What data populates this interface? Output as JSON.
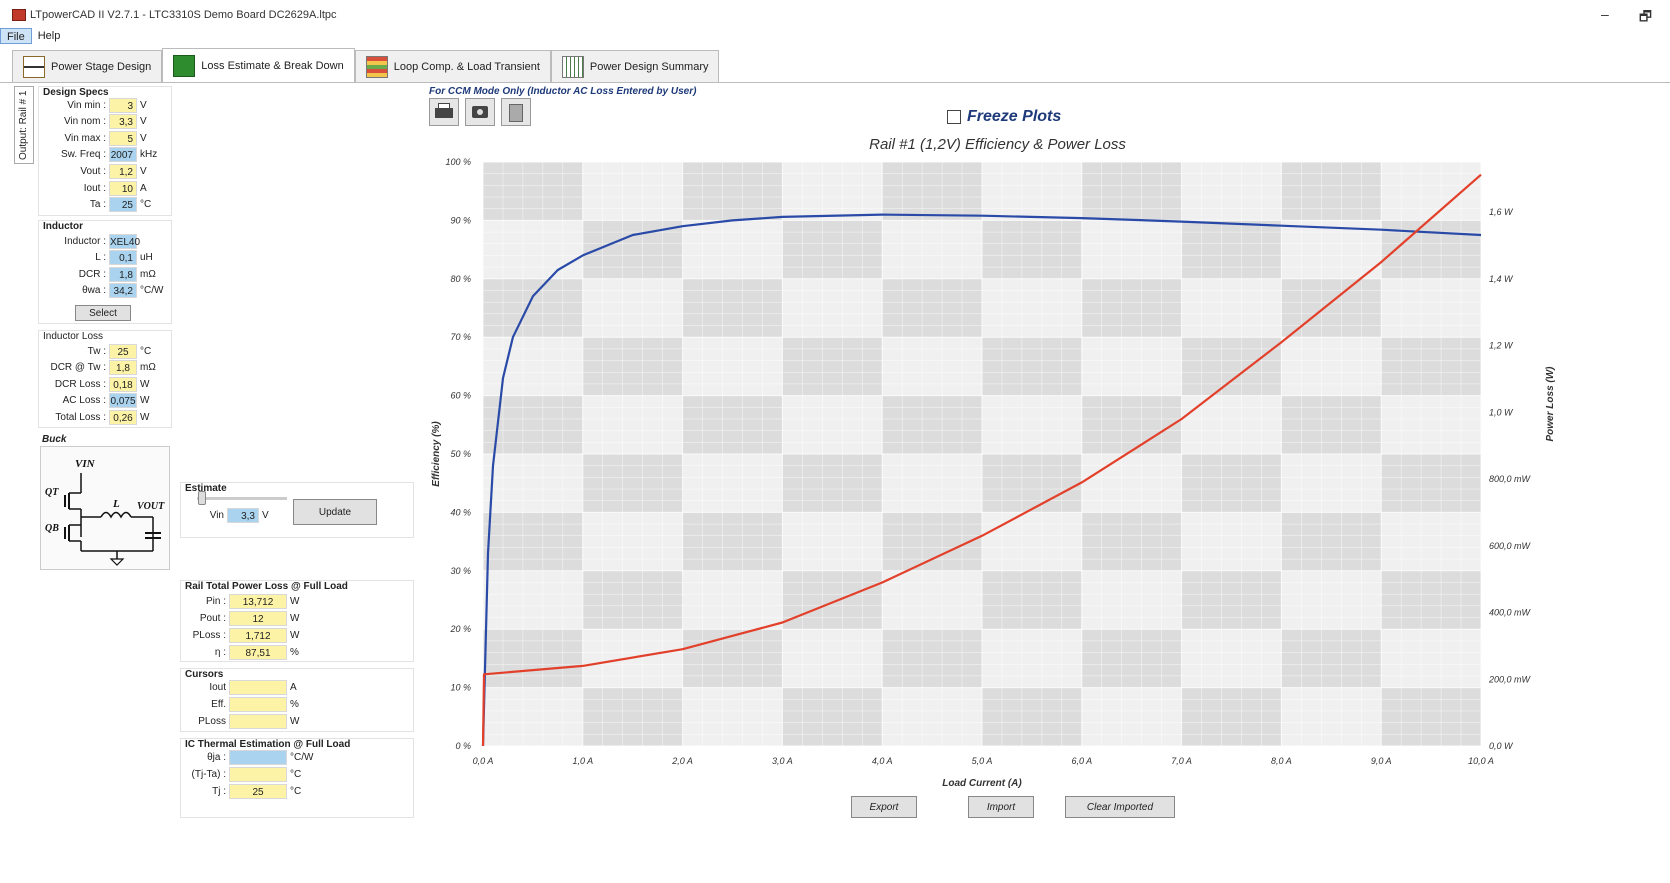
{
  "window": {
    "title": "LTpowerCAD II V2.7.1 - LTC3310S Demo Board DC2629A.ltpc",
    "minimize": "–",
    "restore": "🗗"
  },
  "menu": [
    "File",
    "Help"
  ],
  "tabs": [
    {
      "label": "Power Stage Design",
      "icon": "power-stage-icon"
    },
    {
      "label": "Loss Estimate & Break Down",
      "icon": "loss-estimate-icon"
    },
    {
      "label": "Loop Comp. & Load Transient",
      "icon": "loop-comp-icon"
    },
    {
      "label": "Power Design Summary",
      "icon": "summary-icon"
    }
  ],
  "side_tab": "Output: Rail # 1",
  "design_specs": {
    "title": "Design Specs",
    "rows": [
      {
        "label": "Vin min :",
        "value": "3",
        "unit": "V",
        "color": "yellow"
      },
      {
        "label": "Vin nom :",
        "value": "3,3",
        "unit": "V",
        "color": "yellow"
      },
      {
        "label": "Vin max :",
        "value": "5",
        "unit": "V",
        "color": "yellow"
      },
      {
        "label": "Sw. Freq :",
        "value": "2007",
        "unit": "kHz",
        "color": "blue"
      },
      {
        "label": "Vout :",
        "value": "1,2",
        "unit": "V",
        "color": "yellow"
      },
      {
        "label": "Iout :",
        "value": "10",
        "unit": "A",
        "color": "yellow"
      },
      {
        "label": "Ta :",
        "value": "25",
        "unit": "°C",
        "color": "blue"
      }
    ]
  },
  "inductor": {
    "title": "Inductor",
    "rows": [
      {
        "label": "Inductor :",
        "value": "XEL40",
        "unit": "",
        "color": "blue"
      },
      {
        "label": "L :",
        "value": "0,1",
        "unit": "uH",
        "color": "blue"
      },
      {
        "label": "DCR :",
        "value": "1,8",
        "unit": "mΩ",
        "color": "blue"
      },
      {
        "label": "θwa :",
        "value": "34,2",
        "unit": "°C/W",
        "color": "blue"
      }
    ],
    "select_label": "Select"
  },
  "inductor_loss": {
    "title": "Inductor Loss",
    "rows": [
      {
        "label": "Tw :",
        "value": "25",
        "unit": "°C",
        "color": "yellow"
      },
      {
        "label": "DCR @ Tw :",
        "value": "1,8",
        "unit": "mΩ",
        "color": "yellow"
      },
      {
        "label": "DCR Loss :",
        "value": "0,18",
        "unit": "W",
        "color": "yellow"
      },
      {
        "label": "AC Loss :",
        "value": "0,075",
        "unit": "W",
        "color": "blue"
      },
      {
        "label": "Total Loss :",
        "value": "0,26",
        "unit": "W",
        "color": "yellow"
      }
    ]
  },
  "buck": {
    "title": "Buck",
    "labels": {
      "vin": "VIN",
      "qt": "QT",
      "qb": "QB",
      "l": "L",
      "vout": "VOUT"
    }
  },
  "estimate": {
    "title": "Estimate",
    "vin_label": "Vin",
    "vin_value": "3,3",
    "vin_unit": "V",
    "update_label": "Update"
  },
  "total_loss": {
    "title": "Rail Total Power Loss @ Full Load",
    "rows": [
      {
        "label": "Pin :",
        "value": "13,712",
        "unit": "W"
      },
      {
        "label": "Pout :",
        "value": "12",
        "unit": "W"
      },
      {
        "label": "PLoss :",
        "value": "1,712",
        "unit": "W"
      },
      {
        "label": "η :",
        "value": "87,51",
        "unit": "%"
      }
    ]
  },
  "cursors": {
    "title": "Cursors",
    "rows": [
      {
        "label": "Iout",
        "value": "",
        "unit": "A"
      },
      {
        "label": "Eff.",
        "value": "",
        "unit": "%"
      },
      {
        "label": "PLoss",
        "value": "",
        "unit": "W"
      }
    ]
  },
  "thermal": {
    "title": "IC Thermal Estimation @ Full Load",
    "rows": [
      {
        "label": "θja :",
        "value": "",
        "unit": "°C/W",
        "color": "blue"
      },
      {
        "label": "(Tj-Ta) :",
        "value": "",
        "unit": "°C",
        "color": "yellow"
      },
      {
        "label": "Tj :",
        "value": "25",
        "unit": "°C",
        "color": "yellow"
      }
    ]
  },
  "chart_header": {
    "ccm_note": "For CCM Mode Only (Inductor AC Loss Entered by User)",
    "freeze_label": "Freeze Plots",
    "tools": [
      "print-icon",
      "snapshot-icon",
      "clipboard-icon"
    ]
  },
  "chart_data": {
    "type": "line",
    "title": "Rail #1 (1,2V) Efficiency & Power Loss",
    "xlabel": "Load Current (A)",
    "ylabel_left": "Efficiency (%)",
    "ylabel_right": "Power Loss (W)",
    "xlim": [
      0,
      10
    ],
    "ylim_left": [
      0,
      100
    ],
    "ylim_right": [
      0,
      1.75
    ],
    "x_ticks": [
      "0,0 A",
      "1,0 A",
      "2,0 A",
      "3,0 A",
      "4,0 A",
      "5,0 A",
      "6,0 A",
      "7,0 A",
      "8,0 A",
      "9,0 A",
      "10,0 A"
    ],
    "y_left_ticks": [
      "0 %",
      "10 %",
      "20 %",
      "30 %",
      "40 %",
      "50 %",
      "60 %",
      "70 %",
      "80 %",
      "90 %",
      "100 %"
    ],
    "y_right_ticks": [
      {
        "value": 0,
        "label": "0,0 W"
      },
      {
        "value": 0.2,
        "label": "200,0 mW"
      },
      {
        "value": 0.4,
        "label": "400,0 mW"
      },
      {
        "value": 0.6,
        "label": "600,0 mW"
      },
      {
        "value": 0.8,
        "label": "800,0 mW"
      },
      {
        "value": 1.0,
        "label": "1,0 W"
      },
      {
        "value": 1.2,
        "label": "1,2 W"
      },
      {
        "value": 1.4,
        "label": "1,4 W"
      },
      {
        "value": 1.6,
        "label": "1,6 W"
      }
    ],
    "series": [
      {
        "axis": "left",
        "color": "#2a4aa8",
        "x": [
          0,
          0.05,
          0.1,
          0.2,
          0.3,
          0.5,
          0.75,
          1.0,
          1.5,
          2.0,
          2.5,
          3.0,
          4.0,
          5.0,
          6.0,
          7.0,
          8.0,
          9.0,
          10.0
        ],
        "values": [
          0,
          33,
          48,
          63,
          70,
          77,
          81.5,
          84,
          87.5,
          89,
          90,
          90.6,
          91,
          90.8,
          90.4,
          89.8,
          89.1,
          88.4,
          87.5
        ]
      },
      {
        "axis": "right",
        "color": "#e2402a",
        "x": [
          0,
          0.01,
          1,
          2,
          3,
          4,
          5,
          6,
          7,
          8,
          9,
          10
        ],
        "values": [
          0,
          0.215,
          0.24,
          0.29,
          0.37,
          0.49,
          0.63,
          0.79,
          0.98,
          1.21,
          1.45,
          1.712
        ]
      }
    ]
  },
  "chart_buttons": {
    "export": "Export",
    "import": "Import",
    "clear": "Clear Imported"
  }
}
